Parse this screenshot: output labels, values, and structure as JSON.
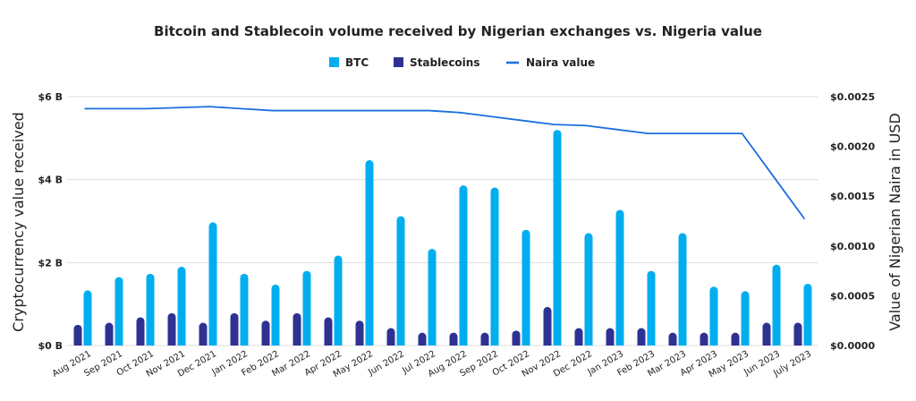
{
  "chart_data": {
    "type": "bar",
    "title": "Bitcoin and Stablecoin volume received by Nigerian exchanges vs. Nigeria value",
    "ylabel": "Cryptocurrency value received",
    "y2label": "Value of Nigerian Naira in USD",
    "xlabel": "",
    "ylim": [
      0,
      6
    ],
    "y2lim": [
      0,
      0.0025
    ],
    "yticks": [
      "$0 B",
      "$2 B",
      "$4 B",
      "$6 B"
    ],
    "y2ticks": [
      "$0.0000",
      "$0.0005",
      "$0.0010",
      "$0.0015",
      "$0.0020",
      "$0.0025"
    ],
    "grid": true,
    "legend_position": "top",
    "categories": [
      "Aug 2021",
      "Sep 2021",
      "Oct 2021",
      "Nov 2021",
      "Dec 2021",
      "Jan 2022",
      "Feb 2022",
      "Mar 2022",
      "Apr 2022",
      "May 2022",
      "Jun 2022",
      "Jul 2022",
      "Aug 2022",
      "Sep 2022",
      "Oct 2022",
      "Nov 2022",
      "Dec 2022",
      "Jan 2023",
      "Feb 2023",
      "Mar 2023",
      "Apr 2023",
      "May 2023",
      "Jun 2023",
      "July 2023"
    ],
    "series": [
      {
        "name": "BTC",
        "type": "bar",
        "axis": "left",
        "color": "#00aeef",
        "values": [
          1.33,
          1.65,
          1.73,
          1.9,
          2.97,
          1.73,
          1.47,
          1.8,
          2.17,
          4.47,
          3.12,
          2.33,
          3.86,
          3.81,
          2.79,
          5.2,
          2.71,
          3.27,
          1.8,
          2.71,
          1.42,
          1.31,
          1.95,
          1.49
        ]
      },
      {
        "name": "Stablecoins",
        "type": "bar",
        "axis": "left",
        "color": "#2e3192",
        "values": [
          0.5,
          0.55,
          0.68,
          0.78,
          0.55,
          0.78,
          0.6,
          0.78,
          0.68,
          0.6,
          0.42,
          0.31,
          0.31,
          0.31,
          0.36,
          0.93,
          0.42,
          0.42,
          0.42,
          0.31,
          0.31,
          0.31,
          0.55,
          0.55
        ]
      },
      {
        "name": "Naira value",
        "type": "line",
        "axis": "right",
        "color": "#1a6fe0",
        "values": [
          0.00238,
          0.00238,
          0.00238,
          0.00239,
          0.0024,
          0.00238,
          0.00236,
          0.00236,
          0.00236,
          0.00236,
          0.00236,
          0.00236,
          0.00234,
          0.0023,
          0.00226,
          0.00222,
          0.00221,
          0.00217,
          0.00213,
          0.00213,
          0.00213,
          0.00213,
          0.0017,
          0.00127
        ]
      }
    ]
  }
}
